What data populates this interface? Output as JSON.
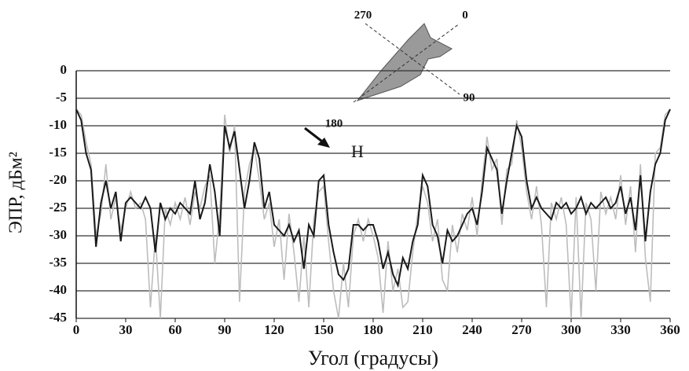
{
  "chart_data": {
    "type": "line",
    "ylabel": "ЭПР, дБм²",
    "xlabel": "Угол (градусы)",
    "annotations": [
      "270",
      "0",
      "90",
      "180",
      "Н"
    ],
    "x": [
      0,
      3,
      6,
      9,
      12,
      15,
      18,
      21,
      24,
      27,
      30,
      33,
      36,
      39,
      42,
      45,
      48,
      51,
      54,
      57,
      60,
      63,
      66,
      69,
      72,
      75,
      78,
      81,
      84,
      87,
      90,
      93,
      96,
      99,
      102,
      105,
      108,
      111,
      114,
      117,
      120,
      123,
      126,
      129,
      132,
      135,
      138,
      141,
      144,
      147,
      150,
      153,
      156,
      159,
      162,
      165,
      168,
      171,
      174,
      177,
      180,
      183,
      186,
      189,
      192,
      195,
      198,
      201,
      204,
      207,
      210,
      213,
      216,
      219,
      222,
      225,
      228,
      231,
      234,
      237,
      240,
      243,
      246,
      249,
      252,
      255,
      258,
      261,
      264,
      267,
      270,
      273,
      276,
      279,
      282,
      285,
      288,
      291,
      294,
      297,
      300,
      303,
      306,
      309,
      312,
      315,
      318,
      321,
      324,
      327,
      330,
      333,
      336,
      339,
      342,
      345,
      348,
      351,
      354,
      357,
      360
    ],
    "series": [
      {
        "color": "#bdbdbd",
        "values": [
          -7,
          -8,
          -13,
          -17,
          -30,
          -26,
          -17,
          -27,
          -23,
          -29,
          -25,
          -22,
          -25,
          -24,
          -27,
          -43,
          -30,
          -45,
          -25,
          -28,
          -24,
          -27,
          -23,
          -28,
          -22,
          -25,
          -21,
          -19,
          -35,
          -26,
          -8,
          -15,
          -10,
          -42,
          -22,
          -17,
          -14,
          -20,
          -27,
          -24,
          -32,
          -27,
          -38,
          -26,
          -33,
          -42,
          -30,
          -43,
          -27,
          -22,
          -21,
          -31,
          -40,
          -45,
          -35,
          -43,
          -30,
          -27,
          -31,
          -27,
          -30,
          -34,
          -44,
          -31,
          -40,
          -36,
          -43,
          -42,
          -33,
          -26,
          -21,
          -24,
          -31,
          -27,
          -38,
          -40,
          -28,
          -33,
          -26,
          -29,
          -23,
          -30,
          -20,
          -12,
          -18,
          -16,
          -28,
          -18,
          -17,
          -9,
          -14,
          -22,
          -27,
          -21,
          -28,
          -43,
          -24,
          -27,
          -23,
          -28,
          -45,
          -23,
          -45,
          -24,
          -27,
          -40,
          -22,
          -26,
          -23,
          -27,
          -19,
          -28,
          -21,
          -33,
          -17,
          -34,
          -42,
          -15,
          -14,
          -8,
          -7
        ]
      },
      {
        "color": "#1a1a1a",
        "values": [
          -7,
          -9,
          -15,
          -18,
          -32,
          -24,
          -20,
          -25,
          -22,
          -31,
          -24,
          -23,
          -24,
          -25,
          -23,
          -25,
          -33,
          -24,
          -27,
          -25,
          -26,
          -24,
          -25,
          -26,
          -20,
          -27,
          -24,
          -17,
          -22,
          -30,
          -10,
          -14,
          -11,
          -18,
          -25,
          -20,
          -13,
          -16,
          -25,
          -22,
          -28,
          -29,
          -30,
          -28,
          -31,
          -29,
          -36,
          -28,
          -30,
          -20,
          -19,
          -28,
          -33,
          -37,
          -38,
          -36,
          -28,
          -28,
          -29,
          -28,
          -28,
          -31,
          -36,
          -33,
          -37,
          -39,
          -34,
          -36,
          -31,
          -28,
          -19,
          -21,
          -28,
          -30,
          -35,
          -29,
          -31,
          -30,
          -28,
          -26,
          -25,
          -28,
          -22,
          -14,
          -16,
          -18,
          -26,
          -20,
          -15,
          -10,
          -12,
          -20,
          -25,
          -23,
          -25,
          -26,
          -27,
          -24,
          -25,
          -24,
          -26,
          -25,
          -23,
          -26,
          -24,
          -25,
          -24,
          -23,
          -25,
          -24,
          -21,
          -26,
          -23,
          -29,
          -19,
          -31,
          -22,
          -17,
          -15,
          -9,
          -7
        ]
      }
    ],
    "xlim": [
      0,
      360
    ],
    "xticks": [
      0,
      30,
      60,
      90,
      120,
      150,
      180,
      210,
      240,
      270,
      300,
      330,
      360
    ],
    "ylim": [
      -45,
      0
    ],
    "yticks": [
      0,
      -5,
      -10,
      -15,
      -20,
      -25,
      -30,
      -35,
      -40,
      -45
    ],
    "grid": true
  }
}
